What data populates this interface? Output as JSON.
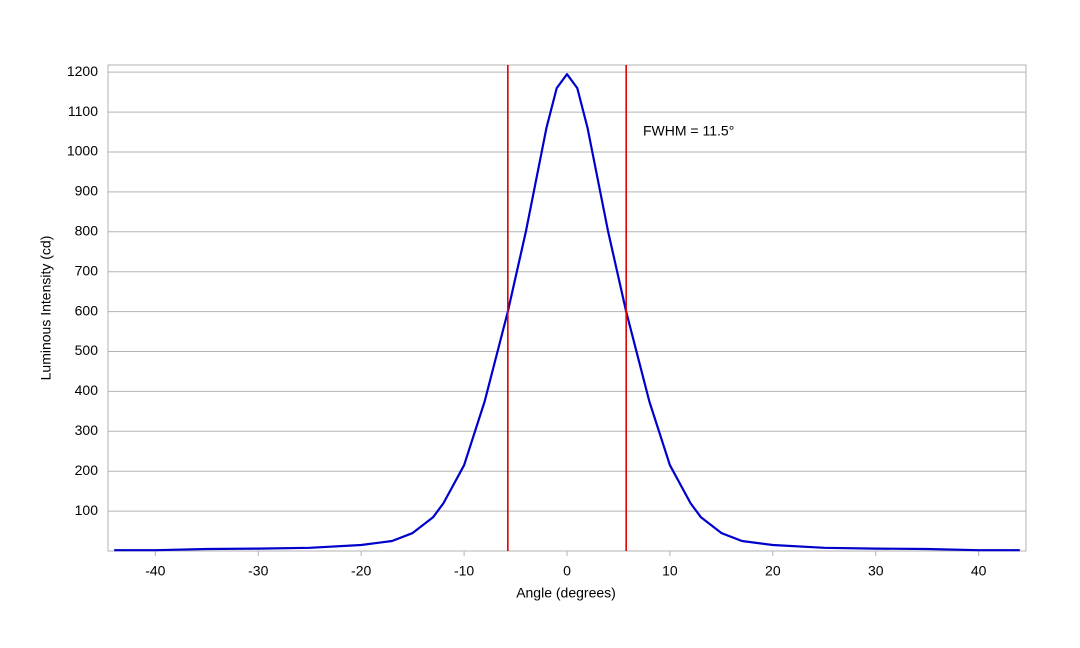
{
  "chart_data": {
    "type": "line",
    "x_label": "Angle (degrees)",
    "y_label": "Luminous Intensity (cd)",
    "annotation": "FWHM = 11.5°",
    "x": [
      -44,
      -40,
      -35,
      -30,
      -25,
      -20,
      -17,
      -15,
      -13,
      -12,
      -10,
      -8,
      -5.75,
      -4,
      -2,
      -1,
      0,
      1,
      2,
      4,
      5.75,
      8,
      10,
      12,
      13,
      15,
      17,
      20,
      25,
      30,
      35,
      40,
      44
    ],
    "series": [
      {
        "color": "#0000cc",
        "values": [
          2,
          2,
          5,
          6,
          8,
          15,
          25,
          45,
          85,
          120,
          215,
          375,
          600,
          800,
          1060,
          1160,
          1195,
          1160,
          1060,
          800,
          600,
          375,
          215,
          120,
          85,
          45,
          25,
          15,
          8,
          6,
          5,
          2,
          2
        ]
      }
    ],
    "vlines": [
      -5.75,
      5.75
    ],
    "vline_color": "#e00000",
    "xlim": [
      -44.6,
      44.6
    ],
    "ylim": [
      0,
      1218
    ],
    "xticks": [
      -40,
      -30,
      -20,
      -10,
      0,
      10,
      20,
      30,
      40
    ],
    "yticks": [
      100,
      200,
      300,
      400,
      500,
      600,
      700,
      800,
      900,
      1000,
      1100,
      1200
    ],
    "grid": true
  }
}
